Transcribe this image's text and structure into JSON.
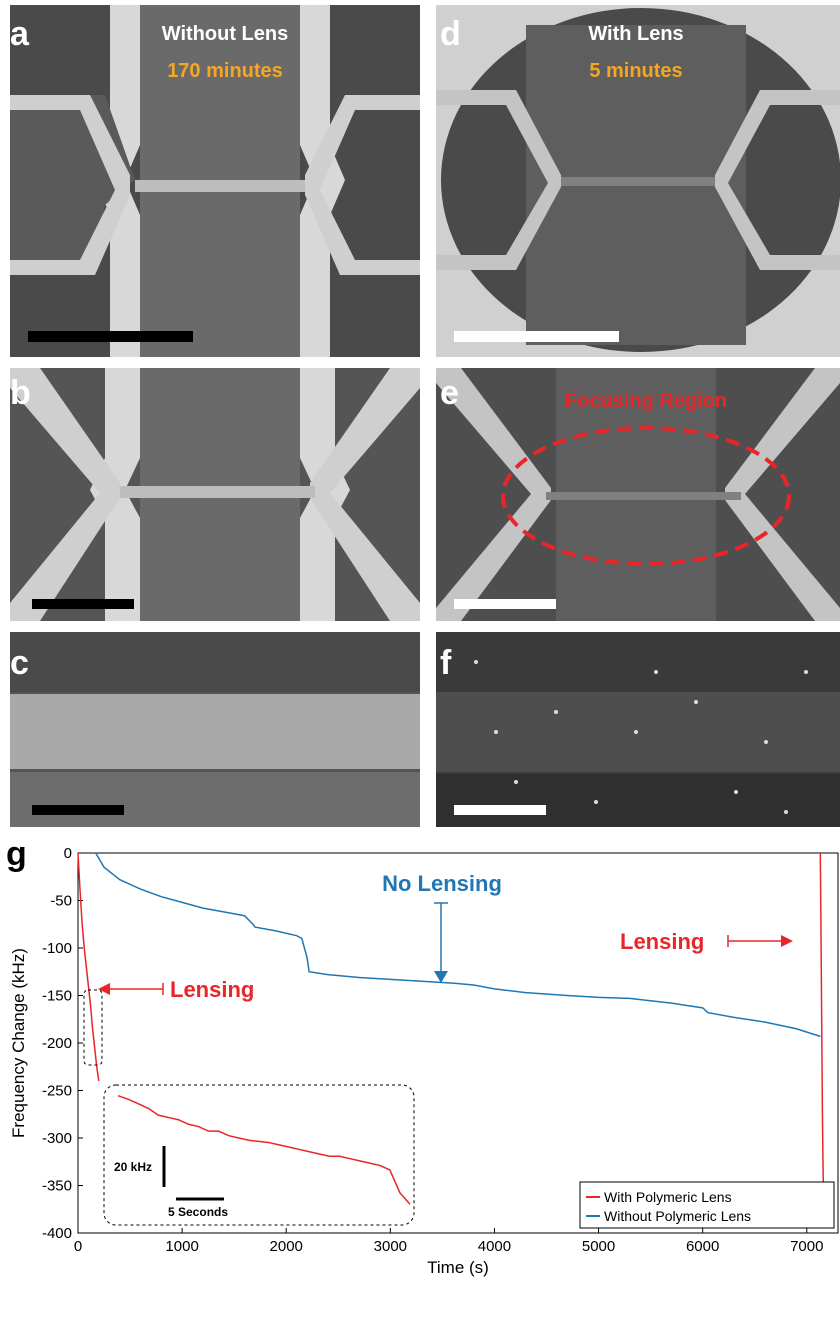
{
  "panels": {
    "a": {
      "label": "a",
      "title": "Without Lens",
      "subtitle": "170 minutes",
      "subtitle_color": "#f5a623"
    },
    "b": {
      "label": "b"
    },
    "c": {
      "label": "c"
    },
    "d": {
      "label": "d",
      "title": "With Lens",
      "subtitle": "5 minutes",
      "subtitle_color": "#f5a623"
    },
    "e": {
      "label": "e",
      "annotation": "Focusing Region",
      "annotation_color": "#e8262a"
    },
    "f": {
      "label": "f"
    },
    "g": {
      "label": "g"
    }
  },
  "chart_data": {
    "type": "line",
    "xlabel": "Time (s)",
    "ylabel": "Frequency Change (kHz)",
    "xlim": [
      0,
      7300
    ],
    "ylim": [
      -400,
      0
    ],
    "xticks": [
      0,
      1000,
      2000,
      3000,
      4000,
      5000,
      6000,
      7000
    ],
    "yticks": [
      0,
      -50,
      -100,
      -150,
      -200,
      -250,
      -300,
      -350,
      -400
    ],
    "legend_position": "bottom-right",
    "series": [
      {
        "name": "With Polymeric Lens",
        "color": "#e8262a",
        "x": [
          0,
          20,
          40,
          60,
          80,
          100,
          120,
          140,
          160,
          180,
          200
        ],
        "y": [
          0,
          -40,
          -75,
          -100,
          -120,
          -140,
          -160,
          -185,
          -205,
          -225,
          -240
        ]
      },
      {
        "name": "Without Polymeric Lens",
        "color": "#1f77b4",
        "x": [
          170,
          250,
          400,
          600,
          800,
          1000,
          1200,
          1400,
          1600,
          1680,
          1700,
          1900,
          2100,
          2150,
          2200,
          2220,
          2400,
          2700,
          3000,
          3300,
          3600,
          3800,
          4000,
          4300,
          4700,
          5000,
          5300,
          5700,
          6000,
          6050,
          6300,
          6600,
          6900,
          7130
        ],
        "y": [
          0,
          -15,
          -28,
          -38,
          -46,
          -52,
          -58,
          -62,
          -66,
          -75,
          -78,
          -82,
          -87,
          -90,
          -110,
          -125,
          -128,
          -131,
          -133,
          -135,
          -137,
          -139,
          -143,
          -147,
          -150,
          -152,
          -153,
          -158,
          -163,
          -168,
          -173,
          -178,
          -185,
          -193
        ]
      },
      {
        "name": "",
        "color": "#e8262a",
        "x": [
          7130,
          7135,
          7140,
          7145,
          7150,
          7155,
          7160
        ],
        "y": [
          0,
          -60,
          -130,
          -200,
          -270,
          -320,
          -355
        ]
      }
    ],
    "annotations": [
      {
        "text": "No Lensing",
        "color": "#1f77b4"
      },
      {
        "text": "Lensing",
        "color": "#e8262a"
      },
      {
        "text": "Lensing",
        "color": "#e8262a"
      }
    ],
    "inset": {
      "scale_y_label": "20 kHz",
      "scale_x_label": "5 Seconds",
      "color": "#e8262a",
      "y": [
        -265,
        -268,
        -272,
        -276,
        -282,
        -284,
        -286,
        -290,
        -292,
        -296,
        -296,
        -300,
        -302,
        -304,
        -305,
        -306,
        -308,
        -310,
        -312,
        -314,
        -316,
        -318,
        -318,
        -320,
        -322,
        -324,
        -326,
        -330,
        -350,
        -360
      ]
    }
  }
}
